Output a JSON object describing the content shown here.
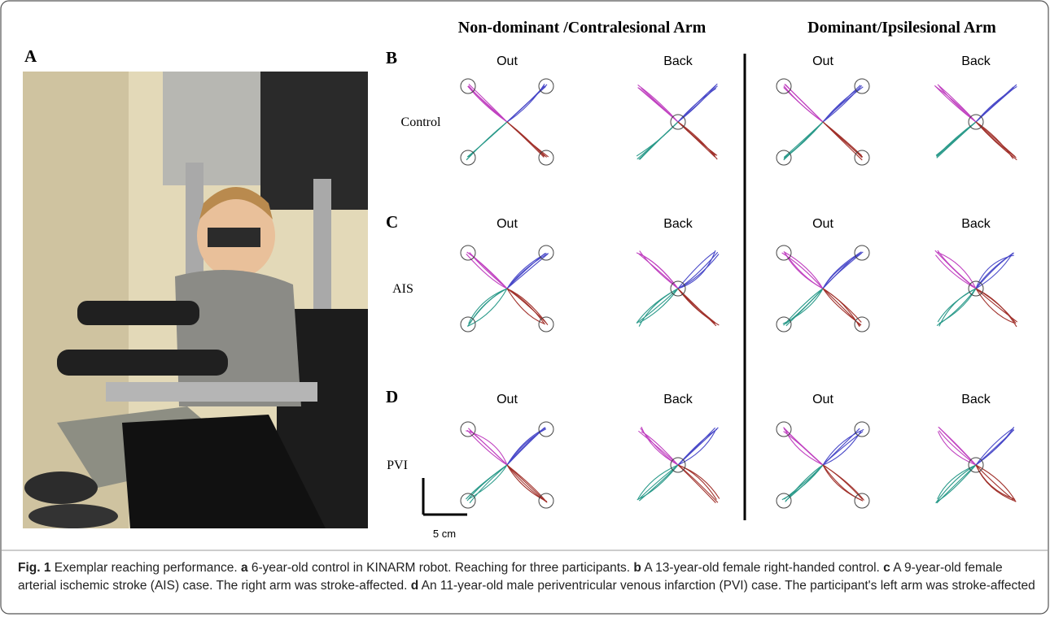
{
  "column_headers": [
    "Non-dominant /Contralesional Arm",
    "Dominant/Ipsilesional Arm"
  ],
  "panel_a_label": "A",
  "panels": [
    {
      "label": "B",
      "row_label": "Control",
      "subplot_titles": [
        "Out",
        "Back",
        "Out",
        "Back"
      ]
    },
    {
      "label": "C",
      "row_label": "AIS",
      "subplot_titles": [
        "Out",
        "Back",
        "Out",
        "Back"
      ]
    },
    {
      "label": "D",
      "row_label": "PVI",
      "subplot_titles": [
        "Out",
        "Back",
        "Out",
        "Back"
      ]
    }
  ],
  "scale_bar": "5 cm",
  "caption": [
    {
      "text": "Fig. 1",
      "bold": true
    },
    {
      "text": " Exemplar reaching performance. ",
      "bold": false
    },
    {
      "text": "a",
      "bold": true
    },
    {
      "text": " 6-year-old control in KINARM robot. Reaching for three participants. ",
      "bold": false
    },
    {
      "text": "b",
      "bold": true
    },
    {
      "text": " A 13-year-old female right-handed control. ",
      "bold": false
    },
    {
      "text": "c",
      "bold": true
    },
    {
      "text": " A 9-year-old female arterial ischemic stroke (AIS) case. The right arm was stroke-affected. ",
      "bold": false
    },
    {
      "text": "d",
      "bold": true
    },
    {
      "text": " An 11-year-old male periventricular venous infarction (PVI) case. The participant's left arm was stroke-affected",
      "bold": false
    }
  ]
}
